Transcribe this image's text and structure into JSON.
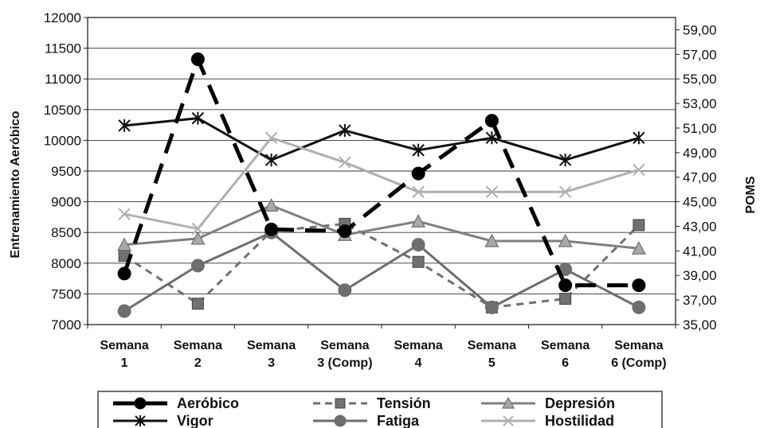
{
  "chart_data": {
    "type": "line",
    "categories": [
      [
        "Semana",
        "1"
      ],
      [
        "Semana",
        "2"
      ],
      [
        "Semana",
        "3"
      ],
      [
        "Semana",
        "3 (Comp)"
      ],
      [
        "Semana",
        "4"
      ],
      [
        "Semana",
        "5"
      ],
      [
        "Semana",
        "6"
      ],
      [
        "Semana",
        "6 (Comp)"
      ]
    ],
    "ylabel": "Entrenamiento Aeróbico",
    "y2label": "POMS",
    "ylim": [
      7000,
      12000
    ],
    "y2lim": [
      35,
      60
    ],
    "yticks": [
      "7000",
      "7500",
      "8000",
      "8500",
      "9000",
      "9500",
      "10000",
      "10500",
      "11000",
      "11500",
      "12000"
    ],
    "y2ticks": [
      "35,00",
      "37,00",
      "39,00",
      "41,00",
      "43,00",
      "45,00",
      "47,00",
      "49,00",
      "51,00",
      "53,00",
      "55,00",
      "57,00",
      "59,00"
    ],
    "grid": true,
    "legend_position": "bottom",
    "series": [
      {
        "name": "Aeróbico",
        "axis": "left",
        "color": "#000000",
        "dash": "long",
        "marker": "circle",
        "values": [
          7830,
          11320,
          8550,
          8520,
          9460,
          10320,
          7640,
          7640
        ]
      },
      {
        "name": "Tensión",
        "axis": "right",
        "color": "#707070",
        "dash": "short",
        "marker": "square",
        "values": [
          40.6,
          36.7,
          42.6,
          43.2,
          40.1,
          36.4,
          37.1,
          43.1
        ]
      },
      {
        "name": "Depresión",
        "axis": "right",
        "color": "#808080",
        "dash": "solid",
        "marker": "triangle",
        "values": [
          41.5,
          42.0,
          44.7,
          42.3,
          43.4,
          41.8,
          41.8,
          41.2
        ]
      },
      {
        "name": "Vigor",
        "axis": "right",
        "color": "#111111",
        "dash": "solid",
        "marker": "star",
        "values": [
          51.2,
          51.8,
          48.4,
          50.8,
          49.2,
          50.2,
          48.4,
          50.2
        ]
      },
      {
        "name": "Fatiga",
        "axis": "right",
        "color": "#6e6e6e",
        "dash": "solid",
        "marker": "circle",
        "values": [
          36.1,
          39.8,
          42.5,
          37.8,
          41.5,
          36.4,
          39.5,
          36.4
        ]
      },
      {
        "name": "Hostilidad",
        "axis": "right",
        "color": "#b0b0b0",
        "dash": "solid",
        "marker": "x",
        "values": [
          44.0,
          42.8,
          50.2,
          48.2,
          45.8,
          45.8,
          45.8,
          47.6
        ]
      }
    ]
  }
}
